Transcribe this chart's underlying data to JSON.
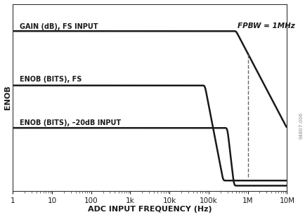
{
  "xlabel": "ADC INPUT FREQUENCY (Hz)",
  "ylabel": "ENOB",
  "xmin": 1,
  "xmax": 10000000.0,
  "fpbw_freq": 1000000.0,
  "fpbw_label": "FPBW = 1MHz",
  "label_gain": "GAIN (dB), FS INPUT",
  "label_enob_fs": "ENOB (BITS), FS",
  "label_enob_20db": "ENOB (BITS), –20dB INPUT",
  "line_color": "#1a1a1a",
  "dashed_color": "#666666",
  "background_color": "#ffffff",
  "watermark": "04807-006"
}
